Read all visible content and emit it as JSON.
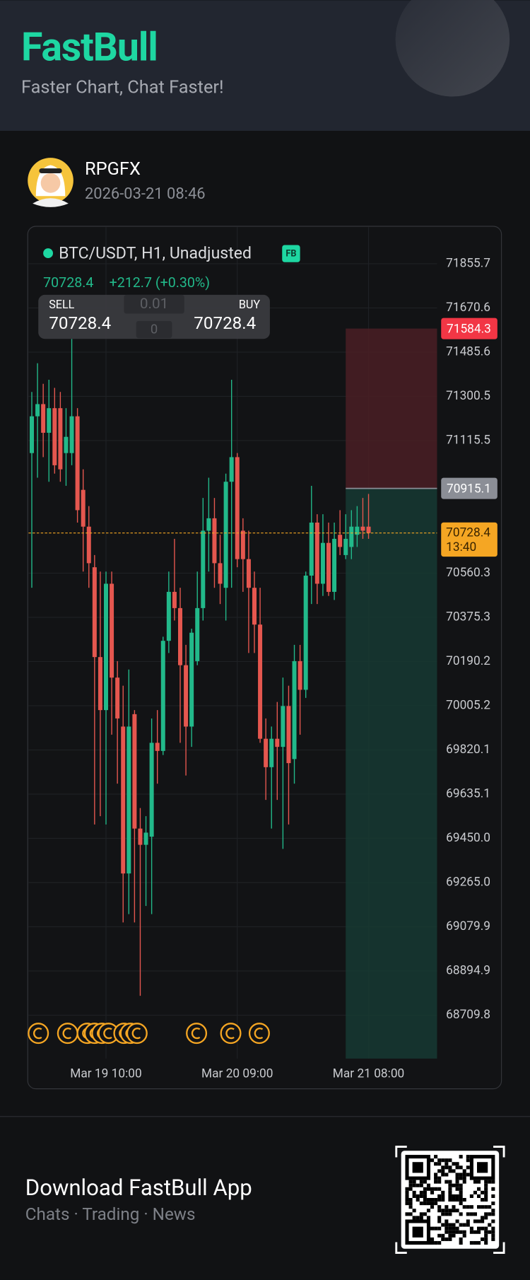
{
  "header": {
    "brand": "FastBull",
    "tagline": "Faster Chart, Chat Faster!"
  },
  "user": {
    "name": "RPGFX",
    "timestamp": "2026-03-21 08:46"
  },
  "footer": {
    "title": "Download FastBull App",
    "subtitle": "Chats · Trading · News"
  },
  "chart_data": {
    "type": "candlestick",
    "title": "BTC/USDT, H1, Unadjusted",
    "badge": "FB",
    "last_price": 70728.4,
    "change_label": "+212.7 (+0.30%)",
    "trade_panel": {
      "sell_label": "SELL",
      "sell_price": 70728.4,
      "buy_label": "BUY",
      "buy_price": 70728.4,
      "quantity": "0.01",
      "quantity_hint": "0"
    },
    "up_color": "#22b98a",
    "down_color": "#e5574f",
    "categories": [
      null,
      null,
      null,
      null,
      null,
      null,
      null,
      null,
      null,
      null,
      null,
      null,
      null,
      "Mar 19 10:00",
      null,
      null,
      null,
      null,
      null,
      null,
      null,
      null,
      null,
      null,
      null,
      null,
      null,
      null,
      null,
      null,
      null,
      null,
      null,
      null,
      null,
      null,
      "Mar 20 09:00",
      null,
      null,
      null,
      null,
      null,
      null,
      null,
      null,
      null,
      null,
      null,
      null,
      null,
      null,
      null,
      null,
      null,
      null,
      null,
      null,
      null,
      null,
      "Mar 21 08:00"
    ],
    "open": [
      71063,
      71217,
      71268,
      71148,
      71251,
      71251,
      71063,
      71063,
      71217,
      70909,
      70755,
      70585,
      70209,
      69987,
      70516,
      70123,
      69918,
      69303,
      69970,
      69491,
      69423,
      69457,
      69850,
      69816,
      70277,
      70482,
      70414,
      70175,
      69918,
      70192,
      70414,
      70738,
      70790,
      70602,
      70499,
      70943,
      71046,
      70738,
      70619,
      70499,
      70345,
      69867,
      69748,
      69867,
      69833,
      70004,
      69782,
      70192,
      70072,
      70550,
      70772,
      70516,
      70687,
      70482,
      70721,
      70636,
      70670,
      70721,
      70755,
      70755
    ],
    "high": [
      71319,
      71439,
      71353,
      71370,
      71336,
      71319,
      71251,
      71541,
      71251,
      70995,
      70841,
      70636,
      70567,
      70567,
      70567,
      70192,
      70089,
      70157,
      69987,
      69577,
      69543,
      69952,
      69987,
      70294,
      70567,
      70704,
      70499,
      70260,
      70328,
      70567,
      70875,
      70960,
      70875,
      70721,
      70977,
      71370,
      71063,
      70790,
      70738,
      70567,
      70499,
      69952,
      69918,
      70021,
      70123,
      70089,
      70260,
      70260,
      70567,
      70926,
      70807,
      70807,
      70772,
      70772,
      70824,
      70807,
      70824,
      70841,
      70875,
      70892
    ],
    "low": [
      70499,
      70960,
      71046,
      70943,
      70977,
      70943,
      70926,
      71012,
      70772,
      70567,
      70499,
      69508,
      69543,
      69508,
      69884,
      69679,
      69098,
      69133,
      69098,
      68791,
      69167,
      69133,
      69679,
      69799,
      70226,
      70362,
      69850,
      69713,
      69833,
      70175,
      70362,
      70567,
      70499,
      70431,
      70362,
      70499,
      70585,
      70482,
      70226,
      70226,
      69850,
      69611,
      69491,
      69611,
      69406,
      69508,
      69679,
      69884,
      70038,
      70431,
      70431,
      70465,
      70465,
      70448,
      70636,
      70619,
      70619,
      70670,
      70704,
      70704
    ],
    "close": [
      71217,
      71268,
      71148,
      71251,
      71012,
      70995,
      71131,
      71217,
      70824,
      70755,
      70602,
      70209,
      69987,
      70516,
      70123,
      69952,
      69303,
      69918,
      69491,
      69423,
      69474,
      69850,
      69816,
      70277,
      70482,
      70414,
      70175,
      69918,
      70311,
      70414,
      70738,
      70790,
      70602,
      70516,
      70943,
      71046,
      70619,
      70619,
      70499,
      70345,
      69867,
      69748,
      69867,
      69833,
      70004,
      69765,
      70192,
      70072,
      70550,
      70772,
      70516,
      70687,
      70482,
      70704,
      70670,
      70704,
      70755,
      70755,
      70738,
      70728.4
    ],
    "ylim": [
      68528,
      71968
    ],
    "yticks": [
      71855.7,
      71670.6,
      71485.6,
      71300.5,
      71115.5,
      70560.3,
      70375.3,
      70190.2,
      70005.2,
      69820.1,
      69635.1,
      {
        "value": 69450,
        "label": "69450.0"
      },
      {
        "value": 69265,
        "label": "69265.0"
      },
      69079.9,
      68894.9,
      68709.8
    ],
    "grid": true,
    "levels": [
      {
        "value": 71584.3,
        "color": "#f23645"
      },
      {
        "value": 70915.1,
        "color": "#8b8e96"
      }
    ],
    "last": {
      "value": 70728.4,
      "countdown": "13:40",
      "color": "#f5a623"
    }
  }
}
